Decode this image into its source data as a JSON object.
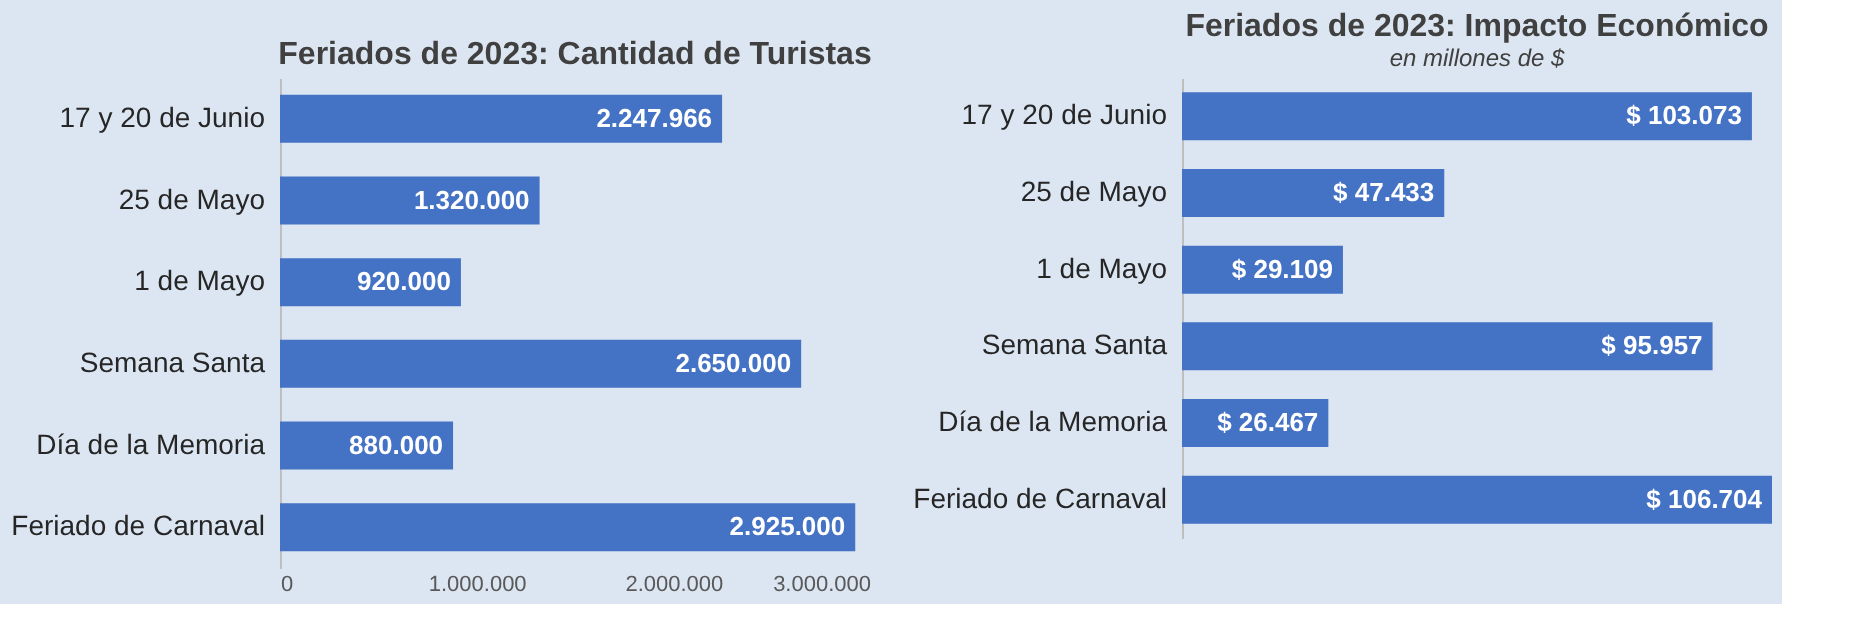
{
  "chart_data": [
    {
      "type": "bar",
      "orientation": "horizontal",
      "title": "Feriados de 2023: Cantidad de Turistas",
      "categories": [
        "17 y 20 de Junio",
        "25 de Mayo",
        "1 de Mayo",
        "Semana Santa",
        "Día de la Memoria",
        "Feriado de Carnaval"
      ],
      "values": [
        2247966,
        1320000,
        920000,
        2650000,
        880000,
        2925000
      ],
      "value_labels": [
        "2.247.966",
        "1.320.000",
        "920.000",
        "2.650.000",
        "880.000",
        "2.925.000"
      ],
      "color": "#4472c4",
      "xlim": [
        0,
        3000000
      ],
      "xticks": [
        0,
        {
          "value": 1000000,
          "label": "1.000.000"
        },
        {
          "value": 2000000,
          "label": "2.000.000"
        },
        {
          "value": 3000000,
          "label": "3.000.000"
        }
      ]
    },
    {
      "type": "bar",
      "orientation": "horizontal",
      "title": "Feriados de 2023: Impacto Económico",
      "subtitle": "en millones de $",
      "categories": [
        "17 y 20 de Junio",
        "25 de Mayo",
        "1 de Mayo",
        "Semana Santa",
        "Día de la Memoria",
        "Feriado de Carnaval"
      ],
      "values": [
        103073,
        47433,
        29109,
        95957,
        26467,
        106704
      ],
      "value_labels": [
        "$ 103.073",
        "$ 47.433",
        "$ 29.109",
        "$ 95.957",
        "$ 26.467",
        "$ 106.704"
      ],
      "color": "#4472c4",
      "tick_labels": "y"
    }
  ]
}
